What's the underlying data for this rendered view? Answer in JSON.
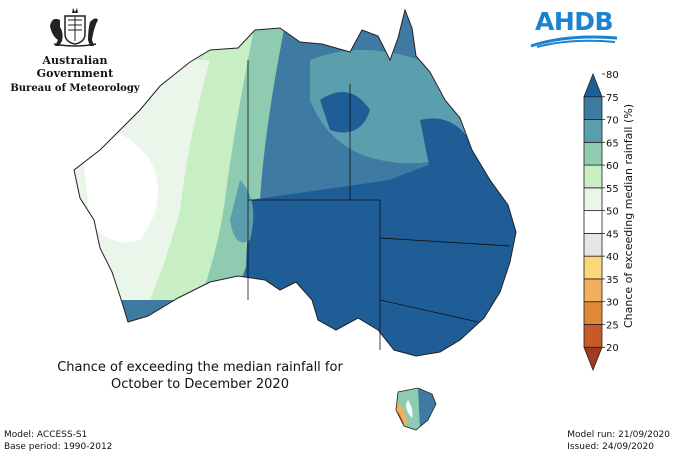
{
  "header": {
    "government": "Australian Government",
    "department": "Bureau of Meteorology",
    "partner_logo": "AHDB"
  },
  "map": {
    "title_line1": "Chance of exceeding the median rainfall for",
    "title_line2": "October to December 2020",
    "region": "Australia"
  },
  "legend": {
    "label": "Chance of exceeding median rainfall (%)",
    "ticks": [
      "20",
      "25",
      "30",
      "35",
      "40",
      "45",
      "50",
      "55",
      "60",
      "65",
      "70",
      "75",
      "80"
    ],
    "colors": [
      "#a33a1d",
      "#c95a28",
      "#e0883a",
      "#f1b05a",
      "#fbd67a",
      "#e6e6e6",
      "#ffffff",
      "#eaf6ea",
      "#c8efc3",
      "#8fcbb0",
      "#5b9fae",
      "#3f7aa3",
      "#1f5d96"
    ]
  },
  "footer": {
    "model": "Model: ACCESS-S1",
    "base_period": "Base period: 1990-2012",
    "model_run": "Model run: 21/09/2020",
    "issued": "Issued: 24/09/2020"
  }
}
